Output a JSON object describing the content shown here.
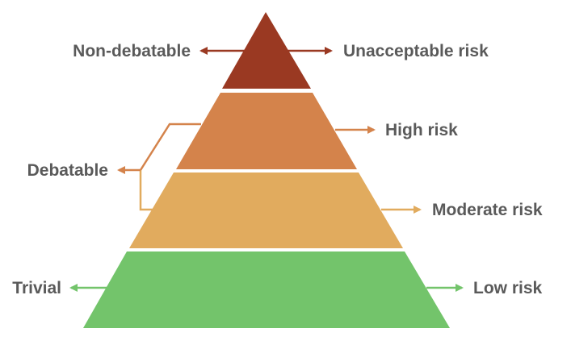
{
  "colors": {
    "text": "#5a5a5a",
    "level_unacceptable": "#9a3922",
    "level_high": "#d4834b",
    "level_moderate": "#e1ab5e",
    "level_low": "#73c46b",
    "arrow_unacceptable": "#9a3922",
    "arrow_high": "#d4834b",
    "arrow_moderate": "#e1ab5e",
    "arrow_low": "#73c46b"
  },
  "levels": [
    {
      "id": "unacceptable",
      "right_label": "Unacceptable risk"
    },
    {
      "id": "high",
      "right_label": "High risk"
    },
    {
      "id": "moderate",
      "right_label": "Moderate risk"
    },
    {
      "id": "low",
      "right_label": "Low risk"
    }
  ],
  "left_labels": {
    "top": "Non-debatable",
    "middle": "Debatable",
    "bottom": "Trivial"
  }
}
